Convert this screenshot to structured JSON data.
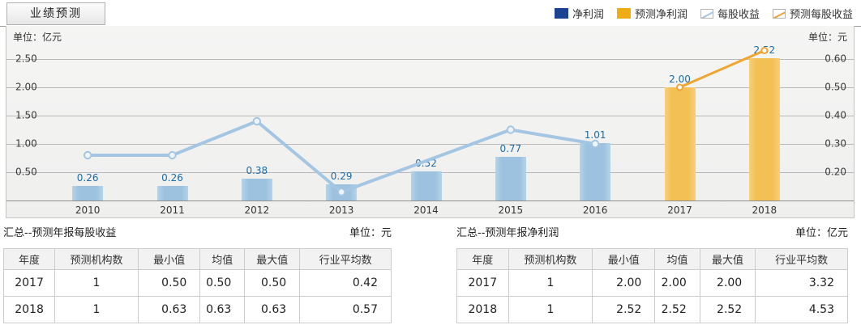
{
  "tab": {
    "label": "业绩预测"
  },
  "legend": {
    "items": [
      {
        "label": "净利润",
        "swatch": "solid",
        "color": "#1c4293"
      },
      {
        "label": "预测净利润",
        "swatch": "solid",
        "color": "#f0ac14"
      },
      {
        "label": "每股收益",
        "swatch": "line",
        "color": "#a5c6e2"
      },
      {
        "label": "预测每股收益",
        "swatch": "line",
        "color": "#efa52f"
      }
    ]
  },
  "chart_data": {
    "type": "bar+line dual-axis",
    "categories": [
      "2010",
      "2011",
      "2012",
      "2013",
      "2014",
      "2015",
      "2016",
      "2017",
      "2018"
    ],
    "left_axis": {
      "unit_label": "单位：亿元",
      "tick_labels": [
        "2.50",
        "2.00",
        "1.50",
        "1.00",
        "0.50"
      ],
      "tick_values": [
        2.5,
        2.0,
        1.5,
        1.0,
        0.5
      ],
      "base_value": 0,
      "tick_step": 0.5
    },
    "right_axis": {
      "unit_label": "单位：元",
      "tick_labels": [
        "0.60",
        "0.50",
        "0.40",
        "0.30",
        "0.20"
      ],
      "tick_values": [
        0.6,
        0.5,
        0.4,
        0.3,
        0.2
      ],
      "base_value": 0.1,
      "tick_step": 0.1
    },
    "grid": true,
    "legend_position": "top-right",
    "value_label_color": "#1e6ba8",
    "series": [
      {
        "name": "净利润",
        "slug": "net-profit",
        "type": "bar",
        "axis": "left",
        "color": "#9cc2df",
        "color_edge": "#b6d3e9",
        "values": [
          0.26,
          0.26,
          0.38,
          0.29,
          0.52,
          0.77,
          1.01,
          null,
          null
        ],
        "labels": [
          "0.26",
          "0.26",
          "0.38",
          "0.29",
          "0.52",
          "0.77",
          "1.01",
          null,
          null
        ]
      },
      {
        "name": "预测净利润",
        "slug": "forecast-net-profit",
        "type": "bar",
        "axis": "left",
        "color": "#f3c055",
        "color_edge": "#f7d07c",
        "values": [
          null,
          null,
          null,
          null,
          null,
          null,
          null,
          2.0,
          2.52
        ],
        "labels": [
          null,
          null,
          null,
          null,
          null,
          null,
          null,
          "2.00",
          "2.52"
        ]
      },
      {
        "name": "每股收益",
        "slug": "eps",
        "type": "line",
        "axis": "right",
        "color": "#a5c6e2",
        "marker_fill": "#eef4fa",
        "values": [
          0.26,
          0.26,
          0.38,
          0.13,
          0.24,
          0.35,
          0.3,
          null,
          null
        ],
        "show_marker": [
          true,
          true,
          true,
          true,
          false,
          true,
          true,
          false,
          false
        ]
      },
      {
        "name": "预测每股收益",
        "slug": "forecast-eps",
        "type": "line",
        "axis": "right",
        "color": "#efa52f",
        "marker_fill": "#ffffff",
        "values": [
          null,
          null,
          null,
          null,
          null,
          null,
          null,
          0.5,
          0.63
        ],
        "show_marker": [
          false,
          false,
          false,
          false,
          false,
          false,
          false,
          true,
          true
        ]
      }
    ]
  },
  "summary_tables": [
    {
      "title": "汇总--预测年报每股收益",
      "unit": "单位：元",
      "headers": [
        "年度",
        "预测机构数",
        "最小值",
        "均值",
        "最大值",
        "行业平均数"
      ],
      "rows": [
        [
          "2017",
          "1",
          "0.50",
          "0.50",
          "0.50",
          "0.42"
        ],
        [
          "2018",
          "1",
          "0.63",
          "0.63",
          "0.63",
          "0.57"
        ]
      ]
    },
    {
      "title": "汇总--预测年报净利润",
      "unit": "单位：亿元",
      "headers": [
        "年度",
        "预测机构数",
        "最小值",
        "均值",
        "最大值",
        "行业平均数"
      ],
      "rows": [
        [
          "2017",
          "1",
          "2.00",
          "2.00",
          "2.00",
          "3.32"
        ],
        [
          "2018",
          "1",
          "2.52",
          "2.52",
          "2.52",
          "4.53"
        ]
      ]
    }
  ]
}
